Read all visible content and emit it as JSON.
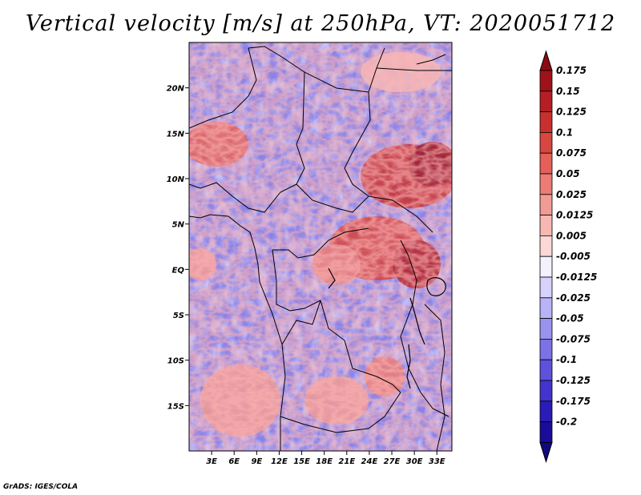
{
  "title": "Vertical velocity [m/s] at 250hPa, VT: 2020051712",
  "footer": "GrADS: IGES/COLA",
  "map": {
    "lon_range": [
      0,
      35
    ],
    "lat_range": [
      -20,
      25
    ],
    "lat_ticks": [
      {
        "label": "20N",
        "value": 20
      },
      {
        "label": "15N",
        "value": 15
      },
      {
        "label": "10N",
        "value": 10
      },
      {
        "label": "5N",
        "value": 5
      },
      {
        "label": "EQ",
        "value": 0
      },
      {
        "label": "5S",
        "value": -5
      },
      {
        "label": "10S",
        "value": -10
      },
      {
        "label": "15S",
        "value": -15
      }
    ],
    "lon_ticks": [
      {
        "label": "3E",
        "value": 3
      },
      {
        "label": "6E",
        "value": 6
      },
      {
        "label": "9E",
        "value": 9
      },
      {
        "label": "12E",
        "value": 12
      },
      {
        "label": "15E",
        "value": 15
      },
      {
        "label": "18E",
        "value": 18
      },
      {
        "label": "21E",
        "value": 21
      },
      {
        "label": "24E",
        "value": 24
      },
      {
        "label": "27E",
        "value": 27
      },
      {
        "label": "30E",
        "value": 30
      },
      {
        "label": "33E",
        "value": 33
      }
    ]
  },
  "colorbar": {
    "levels": [
      {
        "label": "0.175",
        "color": "#a0121a"
      },
      {
        "label": "0.15",
        "color": "#b41e24"
      },
      {
        "label": "0.125",
        "color": "#c8302e"
      },
      {
        "label": "0.1",
        "color": "#d84640"
      },
      {
        "label": "0.075",
        "color": "#e46058"
      },
      {
        "label": "0.05",
        "color": "#ec7c74"
      },
      {
        "label": "0.025",
        "color": "#f29a94"
      },
      {
        "label": "0.0125",
        "color": "#f7b8b4"
      },
      {
        "label": "0.005",
        "color": "#fbd8d6"
      },
      {
        "label": "-0.005",
        "color": "#f4f2ff"
      },
      {
        "label": "-0.0125",
        "color": "#d6d2fb"
      },
      {
        "label": "-0.025",
        "color": "#b8b2f6"
      },
      {
        "label": "-0.05",
        "color": "#9a92ef"
      },
      {
        "label": "-0.075",
        "color": "#7c72e6"
      },
      {
        "label": "-0.1",
        "color": "#5e52da"
      },
      {
        "label": "-0.125",
        "color": "#4234cc"
      },
      {
        "label": "-0.175",
        "color": "#2a1cb6"
      },
      {
        "label": "-0.2",
        "color": "#1a0c98"
      }
    ],
    "top_cap_color": "#8c0a12",
    "bottom_cap_color": "#12087e"
  }
}
